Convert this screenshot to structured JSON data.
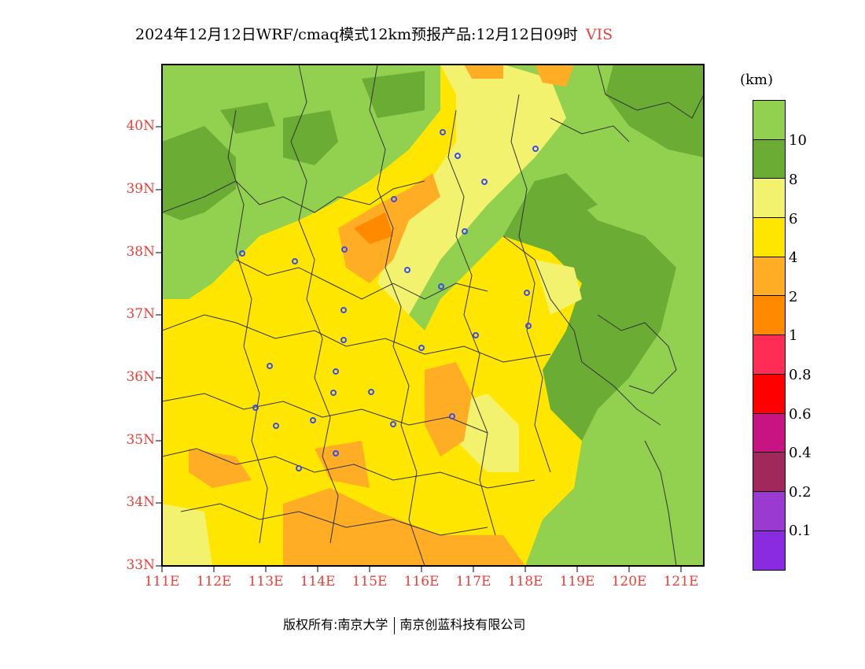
{
  "title": {
    "text": "2024年12月12日WRF/cmaq模式12km预报产品:12月12日09时",
    "variable": "VIS"
  },
  "colorbar": {
    "unit": "(km)",
    "labels": [
      "10",
      "8",
      "6",
      "4",
      "2",
      "1",
      "0.8",
      "0.6",
      "0.4",
      "0.2",
      "0.1"
    ],
    "colors": [
      "#92d050",
      "#6aac34",
      "#f2f26e",
      "#ffe600",
      "#ffad24",
      "#ff8a00",
      "#ff2d55",
      "#ff0000",
      "#c81482",
      "#a0285a",
      "#9a3ad0",
      "#8a2be2"
    ]
  },
  "axes": {
    "lat_labels": [
      "40N",
      "39N",
      "38N",
      "37N",
      "36N",
      "35N",
      "34N",
      "33N"
    ],
    "lon_labels": [
      "111E",
      "112E",
      "113E",
      "114E",
      "115E",
      "116E",
      "117E",
      "118E",
      "119E",
      "120E",
      "121E"
    ]
  },
  "footer": {
    "copyright": "版权所有:南京大学",
    "company": "南京创蓝科技有限公司"
  },
  "map_colors": {
    "dark_green": "#6aac34",
    "light_green": "#92d050",
    "pale_yellow": "#f2f26e",
    "yellow": "#ffe600",
    "light_orange": "#ffad24",
    "orange": "#ff8a00",
    "border": "#333333",
    "station": "#3a4cf0"
  }
}
